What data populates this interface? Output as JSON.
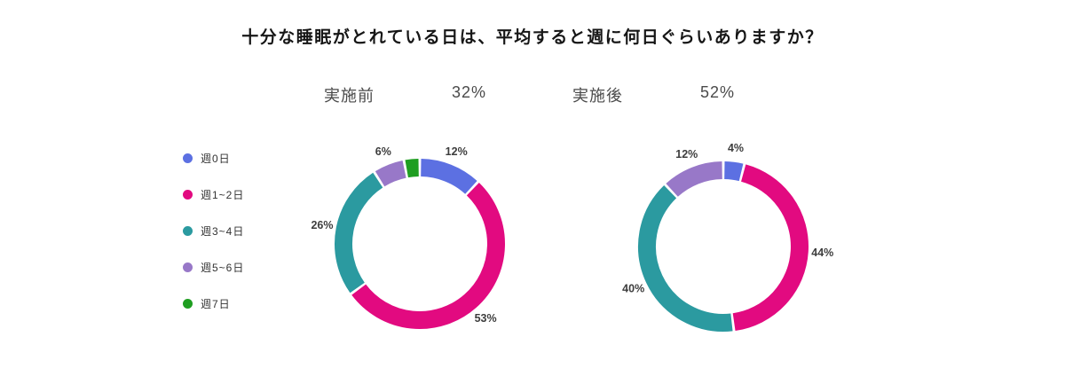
{
  "page": {
    "title": "十分な睡眠がとれている日は、平均すると週に何日ぐらいありますか？",
    "background_color": "#ffffff"
  },
  "legend": {
    "items": [
      {
        "label": "週0日",
        "color": "#5c70e2"
      },
      {
        "label": "週1~2日",
        "color": "#e20a80"
      },
      {
        "label": "週3~4日",
        "color": "#2b9aa0"
      },
      {
        "label": "週5~6日",
        "color": "#9878c8"
      },
      {
        "label": "週7日",
        "color": "#1f9e21"
      }
    ]
  },
  "chart_data": [
    {
      "type": "pie",
      "subtype": "donut",
      "title": "実施前",
      "headline_value": "32%",
      "categories": [
        "週0日",
        "週1~2日",
        "週3~4日",
        "週5~6日",
        "週7日"
      ],
      "values": [
        12,
        53,
        26,
        6,
        3
      ],
      "labels": [
        "12%",
        "53%",
        "26%",
        "6%",
        ""
      ],
      "colors": [
        "#5c70e2",
        "#e20a80",
        "#2b9aa0",
        "#9878c8",
        "#1f9e21"
      ],
      "start_angle": "top",
      "direction": "clockwise",
      "donut_hole": true,
      "segment_gap": true,
      "legend_position": "left"
    },
    {
      "type": "pie",
      "subtype": "donut",
      "title": "実施後",
      "headline_value": "52%",
      "categories": [
        "週0日",
        "週1~2日",
        "週3~4日",
        "週5~6日",
        "週7日"
      ],
      "values": [
        4,
        44,
        40,
        12,
        0
      ],
      "labels": [
        "4%",
        "44%",
        "40%",
        "12%",
        ""
      ],
      "colors": [
        "#5c70e2",
        "#e20a80",
        "#2b9aa0",
        "#9878c8",
        "#1f9e21"
      ],
      "start_angle": "top",
      "direction": "clockwise",
      "donut_hole": true,
      "segment_gap": true,
      "legend_position": "left"
    }
  ]
}
